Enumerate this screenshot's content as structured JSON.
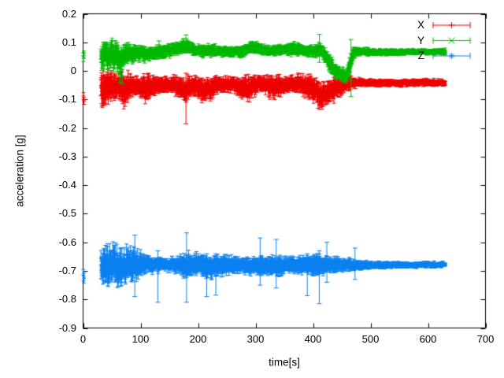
{
  "figure": {
    "background": "#ffffff",
    "axis_color": "#000000",
    "text_color": "#000000"
  },
  "chart_data": {
    "type": "scatter",
    "subtype": "errorbars-timeseries",
    "title": "",
    "xlabel": "time[s]",
    "ylabel": "acceleration [g]",
    "xlim": [
      0,
      700
    ],
    "ylim": [
      -0.9,
      0.2
    ],
    "grid": false,
    "legend_position": "top-right-inside",
    "xticks": [
      {
        "v": 0,
        "label": "0"
      },
      {
        "v": 100,
        "label": "100"
      },
      {
        "v": 200,
        "label": "200"
      },
      {
        "v": 300,
        "label": "300"
      },
      {
        "v": 400,
        "label": "400"
      },
      {
        "v": 500,
        "label": "500"
      },
      {
        "v": 600,
        "label": "600"
      },
      {
        "v": 700,
        "label": "700"
      }
    ],
    "yticks": [
      {
        "v": 0.2,
        "label": "0.2"
      },
      {
        "v": 0.1,
        "label": "0.1"
      },
      {
        "v": 0,
        "label": "0"
      },
      {
        "v": -0.1,
        "label": "-0.1"
      },
      {
        "v": -0.2,
        "label": "-0.2"
      },
      {
        "v": -0.3,
        "label": "-0.3"
      },
      {
        "v": -0.4,
        "label": "-0.4"
      },
      {
        "v": -0.5,
        "label": "-0.5"
      },
      {
        "v": -0.6,
        "label": "-0.6"
      },
      {
        "v": -0.7,
        "label": "-0.7"
      },
      {
        "v": -0.8,
        "label": "-0.8"
      },
      {
        "v": -0.9,
        "label": "-0.9"
      }
    ],
    "envelope_format": "[time_s, band_center_g, band_half_spread_g]",
    "outlier_format": "[time_s, value_g, errorbar_low_g, errorbar_high_g]",
    "start_point_format": "[time_s, value_g, error_g]",
    "series": [
      {
        "name": "X",
        "color": "#ee0000",
        "marker": "plus",
        "seed": 101,
        "start_points": [
          [
            0.5,
            -0.088,
            0.012
          ],
          [
            1.5,
            -0.105,
            0.012
          ]
        ],
        "envelope": [
          [
            31,
            -0.055,
            0.06
          ],
          [
            38,
            -0.06,
            0.065
          ],
          [
            46,
            -0.055,
            0.055
          ],
          [
            54,
            -0.06,
            0.05
          ],
          [
            62,
            -0.05,
            0.045
          ],
          [
            70,
            -0.065,
            0.06
          ],
          [
            78,
            -0.055,
            0.05
          ],
          [
            86,
            -0.05,
            0.04
          ],
          [
            95,
            -0.05,
            0.033
          ],
          [
            104,
            -0.055,
            0.042
          ],
          [
            112,
            -0.06,
            0.05
          ],
          [
            120,
            -0.052,
            0.038
          ],
          [
            130,
            -0.05,
            0.03
          ],
          [
            142,
            -0.05,
            0.028
          ],
          [
            152,
            -0.048,
            0.028
          ],
          [
            162,
            -0.052,
            0.032
          ],
          [
            170,
            -0.06,
            0.04
          ],
          [
            178,
            -0.066,
            0.046
          ],
          [
            186,
            -0.058,
            0.038
          ],
          [
            194,
            -0.052,
            0.032
          ],
          [
            202,
            -0.06,
            0.042
          ],
          [
            210,
            -0.068,
            0.046
          ],
          [
            218,
            -0.062,
            0.042
          ],
          [
            226,
            -0.054,
            0.034
          ],
          [
            236,
            -0.05,
            0.029
          ],
          [
            248,
            -0.048,
            0.027
          ],
          [
            258,
            -0.048,
            0.026
          ],
          [
            268,
            -0.052,
            0.03
          ],
          [
            278,
            -0.058,
            0.038
          ],
          [
            288,
            -0.064,
            0.044
          ],
          [
            296,
            -0.054,
            0.034
          ],
          [
            306,
            -0.046,
            0.027
          ],
          [
            316,
            -0.048,
            0.028
          ],
          [
            326,
            -0.058,
            0.038
          ],
          [
            336,
            -0.056,
            0.036
          ],
          [
            346,
            -0.05,
            0.03
          ],
          [
            356,
            -0.046,
            0.028
          ],
          [
            366,
            -0.042,
            0.027
          ],
          [
            376,
            -0.046,
            0.032
          ],
          [
            386,
            -0.052,
            0.038
          ],
          [
            396,
            -0.058,
            0.042
          ],
          [
            404,
            -0.068,
            0.046
          ],
          [
            412,
            -0.086,
            0.046
          ],
          [
            420,
            -0.088,
            0.042
          ],
          [
            428,
            -0.07,
            0.04
          ],
          [
            436,
            -0.068,
            0.042
          ],
          [
            444,
            -0.058,
            0.036
          ],
          [
            452,
            -0.05,
            0.03
          ],
          [
            462,
            -0.044,
            0.022
          ],
          [
            472,
            -0.041,
            0.017
          ],
          [
            485,
            -0.04,
            0.014
          ],
          [
            510,
            -0.042,
            0.013
          ],
          [
            540,
            -0.043,
            0.012
          ],
          [
            575,
            -0.042,
            0.012
          ],
          [
            605,
            -0.041,
            0.012
          ],
          [
            630,
            -0.041,
            0.012
          ]
        ],
        "outliers": [
          [
            179,
            -0.07,
            -0.185,
            -0.008
          ]
        ]
      },
      {
        "name": "Y",
        "color": "#00b800",
        "marker": "cross",
        "seed": 202,
        "start_points": [
          [
            0.5,
            0.048,
            0.015
          ],
          [
            1.5,
            0.058,
            0.012
          ]
        ],
        "envelope": [
          [
            31,
            0.055,
            0.05
          ],
          [
            40,
            0.05,
            0.052
          ],
          [
            48,
            0.055,
            0.048
          ],
          [
            56,
            0.048,
            0.05
          ],
          [
            64,
            0.042,
            0.046
          ],
          [
            72,
            0.055,
            0.038
          ],
          [
            80,
            0.062,
            0.032
          ],
          [
            90,
            0.06,
            0.03
          ],
          [
            100,
            0.062,
            0.027
          ],
          [
            110,
            0.06,
            0.025
          ],
          [
            122,
            0.063,
            0.023
          ],
          [
            134,
            0.066,
            0.022
          ],
          [
            146,
            0.07,
            0.022
          ],
          [
            158,
            0.074,
            0.024
          ],
          [
            168,
            0.08,
            0.026
          ],
          [
            176,
            0.087,
            0.024
          ],
          [
            184,
            0.084,
            0.022
          ],
          [
            192,
            0.076,
            0.021
          ],
          [
            202,
            0.071,
            0.02
          ],
          [
            214,
            0.07,
            0.02
          ],
          [
            226,
            0.072,
            0.02
          ],
          [
            238,
            0.07,
            0.019
          ],
          [
            250,
            0.068,
            0.018
          ],
          [
            262,
            0.068,
            0.018
          ],
          [
            274,
            0.07,
            0.02
          ],
          [
            286,
            0.078,
            0.022
          ],
          [
            296,
            0.084,
            0.022
          ],
          [
            306,
            0.08,
            0.021
          ],
          [
            318,
            0.072,
            0.019
          ],
          [
            330,
            0.07,
            0.018
          ],
          [
            342,
            0.071,
            0.018
          ],
          [
            354,
            0.074,
            0.02
          ],
          [
            364,
            0.079,
            0.022
          ],
          [
            374,
            0.077,
            0.02
          ],
          [
            384,
            0.072,
            0.02
          ],
          [
            394,
            0.07,
            0.02
          ],
          [
            404,
            0.072,
            0.022
          ],
          [
            412,
            0.074,
            0.024
          ],
          [
            420,
            0.058,
            0.028
          ],
          [
            428,
            0.03,
            0.03
          ],
          [
            436,
            0.008,
            0.028
          ],
          [
            444,
            -0.008,
            0.026
          ],
          [
            452,
            -0.016,
            0.024
          ],
          [
            458,
            -0.022,
            0.022
          ],
          [
            463,
            0.012,
            0.03
          ],
          [
            468,
            0.052,
            0.028
          ],
          [
            474,
            0.066,
            0.018
          ],
          [
            482,
            0.068,
            0.014
          ],
          [
            500,
            0.066,
            0.012
          ],
          [
            525,
            0.065,
            0.011
          ],
          [
            555,
            0.066,
            0.01
          ],
          [
            590,
            0.067,
            0.01
          ],
          [
            630,
            0.067,
            0.01
          ]
        ],
        "outliers": [
          [
            64,
            -0.012,
            -0.04,
            0.01
          ],
          [
            68,
            -0.02,
            -0.045,
            0.005
          ],
          [
            132,
            0.085,
            0.06,
            0.105
          ],
          [
            179,
            0.1,
            0.072,
            0.126
          ],
          [
            411,
            0.08,
            0.03,
            0.128
          ],
          [
            466,
            -0.03,
            -0.09,
            0.11
          ]
        ]
      },
      {
        "name": "Z",
        "color": "#0b80f0",
        "marker": "asterisk",
        "seed": 303,
        "start_points": [
          [
            0.5,
            -0.715,
            0.02
          ],
          [
            1.5,
            -0.725,
            0.018
          ]
        ],
        "envelope": [
          [
            31,
            -0.69,
            0.062
          ],
          [
            38,
            -0.685,
            0.075
          ],
          [
            46,
            -0.688,
            0.072
          ],
          [
            54,
            -0.685,
            0.068
          ],
          [
            62,
            -0.69,
            0.07
          ],
          [
            70,
            -0.686,
            0.066
          ],
          [
            78,
            -0.682,
            0.062
          ],
          [
            86,
            -0.684,
            0.058
          ],
          [
            94,
            -0.682,
            0.05
          ],
          [
            102,
            -0.679,
            0.04
          ],
          [
            110,
            -0.676,
            0.033
          ],
          [
            120,
            -0.679,
            0.028
          ],
          [
            132,
            -0.678,
            0.025
          ],
          [
            144,
            -0.679,
            0.024
          ],
          [
            156,
            -0.68,
            0.025
          ],
          [
            166,
            -0.68,
            0.03
          ],
          [
            174,
            -0.684,
            0.04
          ],
          [
            182,
            -0.683,
            0.042
          ],
          [
            190,
            -0.678,
            0.036
          ],
          [
            200,
            -0.679,
            0.038
          ],
          [
            210,
            -0.684,
            0.042
          ],
          [
            220,
            -0.681,
            0.04
          ],
          [
            230,
            -0.679,
            0.038
          ],
          [
            240,
            -0.68,
            0.035
          ],
          [
            252,
            -0.68,
            0.032
          ],
          [
            264,
            -0.678,
            0.03
          ],
          [
            276,
            -0.679,
            0.028
          ],
          [
            288,
            -0.68,
            0.03
          ],
          [
            300,
            -0.681,
            0.033
          ],
          [
            310,
            -0.682,
            0.034
          ],
          [
            320,
            -0.68,
            0.031
          ],
          [
            330,
            -0.681,
            0.033
          ],
          [
            340,
            -0.682,
            0.034
          ],
          [
            350,
            -0.68,
            0.031
          ],
          [
            360,
            -0.679,
            0.029
          ],
          [
            370,
            -0.679,
            0.028
          ],
          [
            380,
            -0.68,
            0.029
          ],
          [
            390,
            -0.681,
            0.03
          ],
          [
            400,
            -0.68,
            0.031
          ],
          [
            410,
            -0.68,
            0.034
          ],
          [
            420,
            -0.681,
            0.032
          ],
          [
            430,
            -0.68,
            0.028
          ],
          [
            440,
            -0.679,
            0.026
          ],
          [
            450,
            -0.68,
            0.025
          ],
          [
            460,
            -0.679,
            0.022
          ],
          [
            472,
            -0.68,
            0.019
          ],
          [
            485,
            -0.68,
            0.016
          ],
          [
            505,
            -0.68,
            0.014
          ],
          [
            525,
            -0.68,
            0.012
          ],
          [
            550,
            -0.679,
            0.011
          ],
          [
            580,
            -0.679,
            0.01
          ],
          [
            610,
            -0.678,
            0.01
          ],
          [
            630,
            -0.678,
            0.01
          ]
        ],
        "outliers": [
          [
            90,
            -0.68,
            -0.79,
            -0.575
          ],
          [
            130,
            -0.7,
            -0.81,
            -0.63
          ],
          [
            180,
            -0.69,
            -0.81,
            -0.567
          ],
          [
            215,
            -0.7,
            -0.79,
            -0.64
          ],
          [
            231,
            -0.7,
            -0.785,
            -0.64
          ],
          [
            308,
            -0.67,
            -0.75,
            -0.585
          ],
          [
            336,
            -0.67,
            -0.76,
            -0.59
          ],
          [
            390,
            -0.7,
            -0.787,
            -0.64
          ],
          [
            411,
            -0.7,
            -0.815,
            -0.63
          ],
          [
            424,
            -0.67,
            -0.74,
            -0.6
          ],
          [
            473,
            -0.68,
            -0.73,
            -0.62
          ]
        ]
      }
    ]
  }
}
